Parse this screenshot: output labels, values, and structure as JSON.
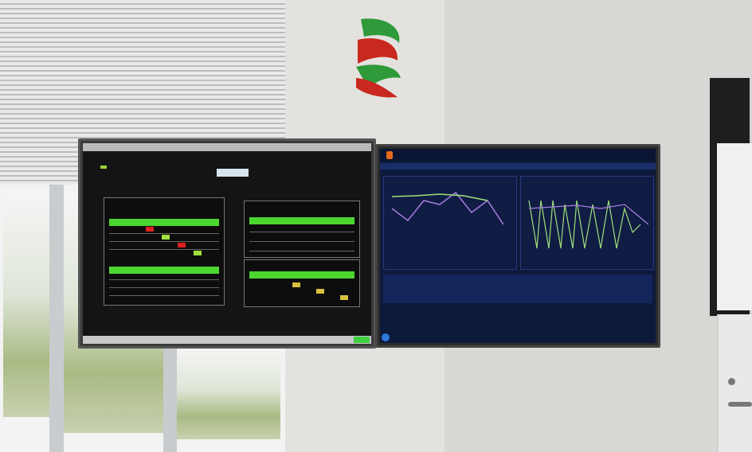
{
  "scene": {
    "description_colors": {
      "wall": "#e3e2de",
      "left_screen_background": "#141414",
      "left_screen_accent": "#4cd630",
      "right_screen_background": "#0e1a3c",
      "chart_line_purple": "#a77ee0",
      "chart_line_green": "#9fe07a",
      "logo_red": "#c8281e",
      "logo_green": "#2f9a3a"
    },
    "icons": [
      "company-logo",
      "windows-start-icon"
    ]
  }
}
